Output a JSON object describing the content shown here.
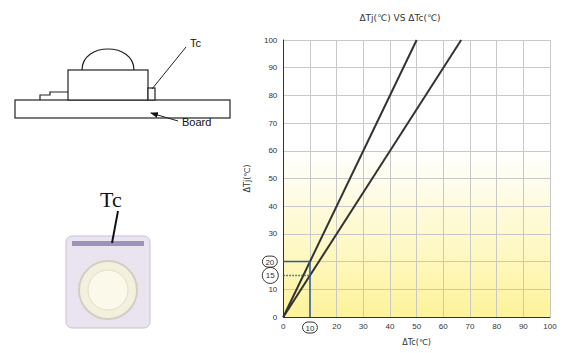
{
  "chart_data": {
    "type": "line",
    "title": "ΔTj(℃) VS ΔTc(℃)",
    "x_label": "ΔTc(℃)",
    "y_label": "ΔTj(℃)",
    "series": [
      {
        "x": [
          0,
          50
        ],
        "values": [
          0,
          100
        ],
        "color": "#333333",
        "line_style": "solid"
      },
      {
        "x": [
          0,
          66.7
        ],
        "values": [
          0,
          100
        ],
        "color": "#333333",
        "line_style": "solid"
      }
    ],
    "xlim": [
      0,
      100
    ],
    "ylim": [
      0,
      100
    ],
    "xticks": [
      0,
      10,
      20,
      30,
      40,
      50,
      60,
      70,
      80,
      90,
      100
    ],
    "yticks": [
      0,
      10,
      20,
      30,
      40,
      50,
      60,
      70,
      80,
      90,
      100
    ],
    "grid": true,
    "annotations": {
      "guide_lines": [
        {
          "x": [
            10,
            10
          ],
          "y": [
            0,
            20
          ],
          "color": "#2e5b9a",
          "line_style": "solid"
        },
        {
          "x": [
            0,
            10
          ],
          "y": [
            20,
            20
          ],
          "color": "#2e5b9a",
          "line_style": "solid"
        },
        {
          "x": [
            0,
            10
          ],
          "y": [
            15,
            15
          ],
          "color": "#2e5b9a",
          "line_style": "dotted"
        }
      ],
      "circled_values": [
        {
          "axis": "y",
          "value": 20
        },
        {
          "axis": "y",
          "value": 15
        },
        {
          "axis": "x",
          "value": 10
        }
      ]
    }
  },
  "diagram": {
    "side_view": {
      "case_point_label": "Tc",
      "board_label": "Board"
    },
    "top_view": {
      "case_point_label": "Tc"
    }
  }
}
